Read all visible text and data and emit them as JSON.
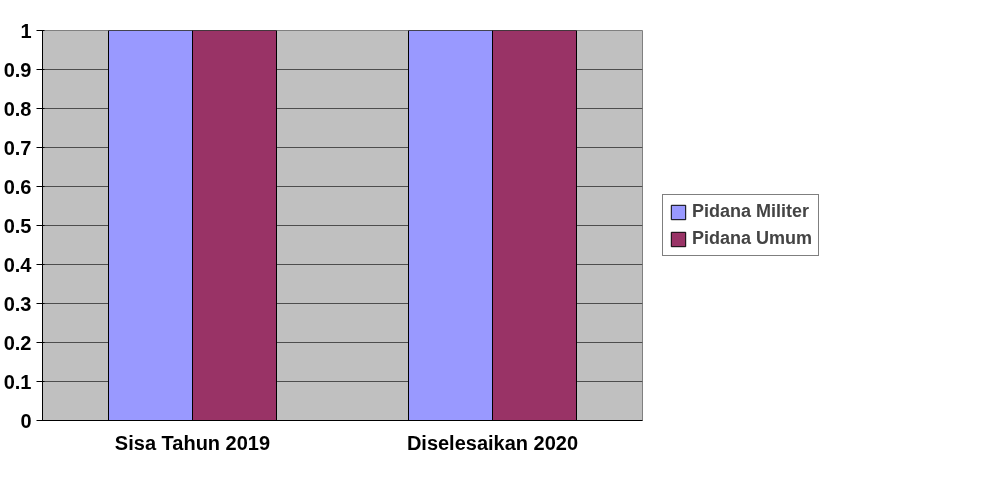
{
  "chart_data": {
    "type": "bar",
    "categories": [
      "Sisa Tahun 2019",
      "Diselesaikan 2020"
    ],
    "series": [
      {
        "name": "Pidana Militer",
        "color": "#9999ff",
        "values": [
          1,
          1
        ]
      },
      {
        "name": "Pidana Umum",
        "color": "#993366",
        "values": [
          1,
          1
        ]
      }
    ],
    "ylim": [
      0,
      1
    ],
    "yticks": [
      0,
      0.1,
      0.2,
      0.3,
      0.4,
      0.5,
      0.6,
      0.7,
      0.8,
      0.9,
      1
    ],
    "grid": "y",
    "legend": "right"
  }
}
